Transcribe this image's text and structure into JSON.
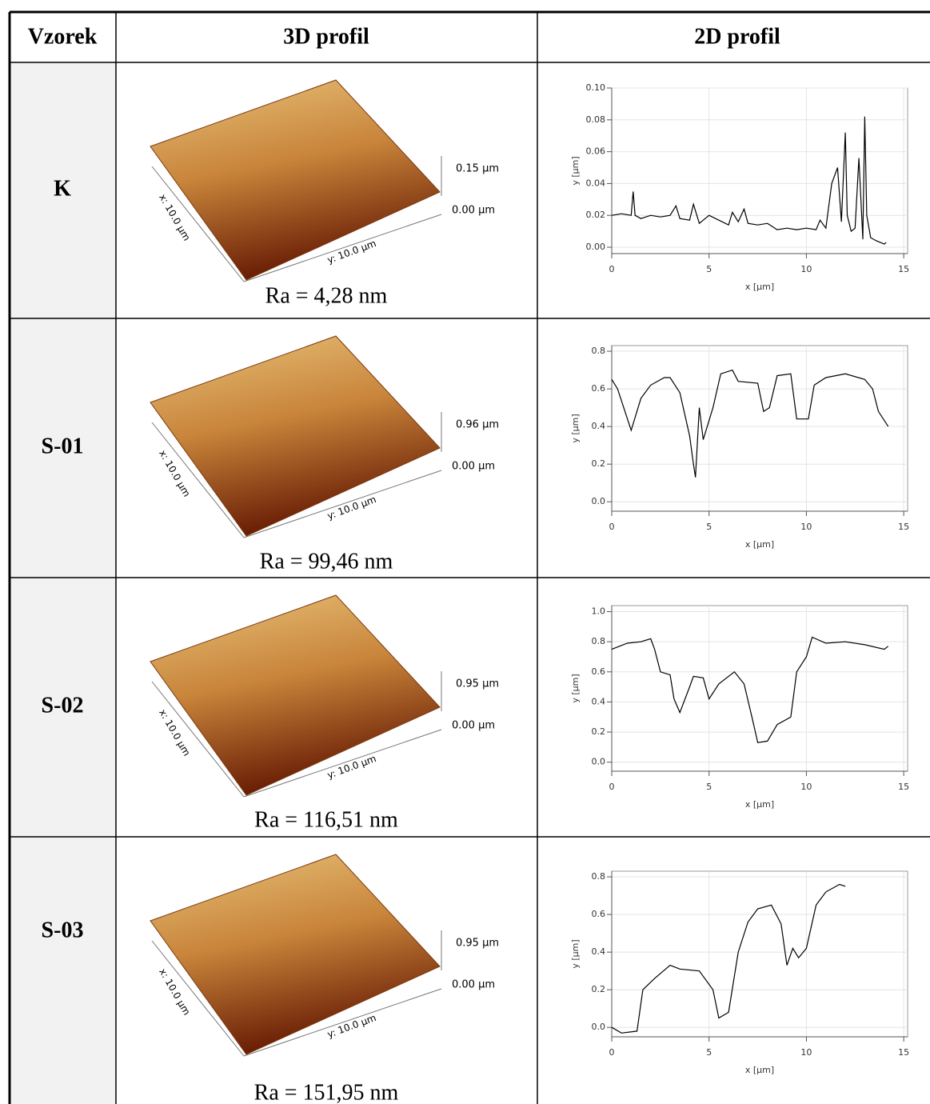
{
  "table": {
    "header": [
      "Vzorek",
      "3D profil",
      "2D profil"
    ],
    "rows": [
      {
        "sample": "K",
        "x_axis": "x: 10.0 µm",
        "y_axis": "y: 10.0 µm",
        "z_max": "0.15 µm",
        "z_min": "0.00 µm",
        "ra": "Ra = 4,28 nm"
      },
      {
        "sample": "S-01",
        "x_axis": "x: 10.0 µm",
        "y_axis": "y: 10.0 µm",
        "z_max": "0.96 µm",
        "z_min": "0.00 µm",
        "ra": "Ra = 99,46 nm"
      },
      {
        "sample": "S-02",
        "x_axis": "x: 10.0 µm",
        "y_axis": "y: 10.0 µm",
        "z_max": "0.95 µm",
        "z_min": "0.00 µm",
        "ra": "Ra = 116,51 nm"
      },
      {
        "sample": "S-03",
        "x_axis": "x: 10.0 µm",
        "y_axis": "y: 10.0 µm",
        "z_max": "0.95 µm",
        "z_min": "0.00 µm",
        "ra": "Ra = 151,95 nm"
      }
    ]
  },
  "chart_data": [
    {
      "type": "line",
      "xlabel": "x [µm]",
      "ylabel": "y [µm]",
      "color": "#000000",
      "grid": true,
      "xlim": [
        0,
        15.2
      ],
      "xticks": [
        0,
        5,
        10,
        15
      ],
      "ylim": [
        -0.004,
        0.1
      ],
      "yticks": [
        {
          "value": 0,
          "label": "0.00"
        },
        0.02,
        0.04,
        0.06,
        0.08,
        {
          "value": 0.1,
          "label": "0.10"
        }
      ],
      "x": [
        0,
        0.5,
        1,
        1.1,
        1.2,
        1.5,
        2,
        2.5,
        3,
        3.3,
        3.5,
        4,
        4.2,
        4.5,
        5,
        5.5,
        6,
        6.2,
        6.5,
        6.8,
        7,
        7.5,
        8,
        8.5,
        9,
        9.5,
        10,
        10.5,
        10.7,
        11,
        11.3,
        11.6,
        11.8,
        12,
        12.1,
        12.3,
        12.5,
        12.7,
        12.9,
        13,
        13.1,
        13.3,
        13.6,
        14,
        14.1
      ],
      "values": [
        0.02,
        0.021,
        0.02,
        0.035,
        0.02,
        0.018,
        0.02,
        0.019,
        0.02,
        0.026,
        0.018,
        0.017,
        0.027,
        0.015,
        0.02,
        0.017,
        0.014,
        0.022,
        0.016,
        0.024,
        0.015,
        0.014,
        0.015,
        0.011,
        0.012,
        0.011,
        0.012,
        0.011,
        0.017,
        0.012,
        0.04,
        0.05,
        0.016,
        0.072,
        0.02,
        0.01,
        0.012,
        0.056,
        0.005,
        0.082,
        0.02,
        0.006,
        0.004,
        0.002,
        0.003
      ]
    },
    {
      "type": "line",
      "xlabel": "x [µm]",
      "ylabel": "y [µm]",
      "color": "#000000",
      "grid": true,
      "xlim": [
        0,
        15.2
      ],
      "xticks": [
        0,
        5,
        10,
        15
      ],
      "ylim": [
        -0.05,
        0.83
      ],
      "yticks": [
        {
          "value": 0,
          "label": "0.0"
        },
        0.2,
        0.4,
        0.6,
        0.8
      ],
      "x": [
        0,
        0.3,
        1,
        1.5,
        2,
        2.7,
        3,
        3.5,
        4,
        4.2,
        4.3,
        4.5,
        4.7,
        5.2,
        5.6,
        6.2,
        6.5,
        7.5,
        7.8,
        8.1,
        8.5,
        9.2,
        9.5,
        10.1,
        10.4,
        11,
        12,
        13,
        13.4,
        13.7,
        14.2
      ],
      "values": [
        0.65,
        0.6,
        0.38,
        0.55,
        0.62,
        0.66,
        0.66,
        0.58,
        0.35,
        0.2,
        0.13,
        0.5,
        0.33,
        0.5,
        0.68,
        0.7,
        0.64,
        0.63,
        0.48,
        0.5,
        0.67,
        0.68,
        0.44,
        0.44,
        0.62,
        0.66,
        0.68,
        0.65,
        0.6,
        0.48,
        0.4
      ]
    },
    {
      "type": "line",
      "xlabel": "x [µm]",
      "ylabel": "y [µm]",
      "color": "#000000",
      "grid": true,
      "xlim": [
        0,
        15.2
      ],
      "xticks": [
        0,
        5,
        10,
        15
      ],
      "ylim": [
        -0.06,
        1.04
      ],
      "yticks": [
        {
          "value": 0,
          "label": "0.0"
        },
        0.2,
        0.4,
        0.6,
        0.8,
        {
          "value": 1,
          "label": "1.0"
        }
      ],
      "x": [
        0,
        0.8,
        1.5,
        2,
        2.2,
        2.5,
        3,
        3.2,
        3.5,
        4,
        4.2,
        4.7,
        5,
        5.5,
        6.3,
        6.8,
        7.2,
        7.5,
        8,
        8.5,
        9.2,
        9.5,
        10,
        10.3,
        11,
        12,
        13,
        14,
        14.2
      ],
      "values": [
        0.75,
        0.79,
        0.8,
        0.82,
        0.75,
        0.6,
        0.58,
        0.42,
        0.33,
        0.5,
        0.57,
        0.56,
        0.42,
        0.52,
        0.6,
        0.52,
        0.3,
        0.13,
        0.14,
        0.25,
        0.3,
        0.6,
        0.7,
        0.83,
        0.79,
        0.8,
        0.78,
        0.75,
        0.77
      ]
    },
    {
      "type": "line",
      "xlabel": "x [µm]",
      "ylabel": "y [µm]",
      "color": "#000000",
      "grid": true,
      "xlim": [
        0,
        15.2
      ],
      "xticks": [
        0,
        5,
        10,
        15
      ],
      "ylim": [
        -0.05,
        0.83
      ],
      "yticks": [
        {
          "value": 0,
          "label": "0.0"
        },
        0.2,
        0.4,
        0.6,
        0.8
      ],
      "x": [
        0,
        0.5,
        1.3,
        1.6,
        2.2,
        3,
        3.5,
        4.5,
        5.2,
        5.5,
        6,
        6.5,
        7,
        7.5,
        8.2,
        8.7,
        9,
        9.3,
        9.6,
        10,
        10.5,
        11,
        11.7,
        12
      ],
      "values": [
        0,
        -0.03,
        -0.02,
        0.2,
        0.26,
        0.33,
        0.31,
        0.3,
        0.2,
        0.05,
        0.08,
        0.4,
        0.56,
        0.63,
        0.65,
        0.55,
        0.33,
        0.42,
        0.37,
        0.42,
        0.65,
        0.72,
        0.76,
        0.75
      ]
    }
  ]
}
